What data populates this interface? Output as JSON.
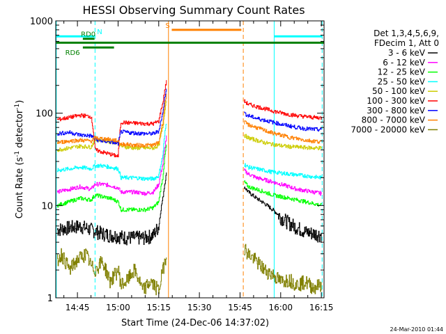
{
  "chart_data": {
    "type": "line",
    "title": "HESSI Observing Summary Count Rates",
    "xlabel": "Start Time (24-Dec-06 14:37:02)",
    "ylabel": "Count Rate (s⁻¹ detector⁻¹)",
    "ylabel_parts": {
      "main": "Count Rate (s",
      "exp1": "-1",
      "mid": " detector",
      "exp2": "-1",
      "end": ")"
    },
    "x_unit": "minutes of day (UT)",
    "x_range": [
      877.0,
      976.0
    ],
    "y_scale": "log",
    "y_range": [
      1,
      1000
    ],
    "x_ticks": [
      {
        "value": 885,
        "label": "14:45"
      },
      {
        "value": 900,
        "label": "15:00"
      },
      {
        "value": 915,
        "label": "15:15"
      },
      {
        "value": 930,
        "label": "15:30"
      },
      {
        "value": 945,
        "label": "15:45"
      },
      {
        "value": 960,
        "label": "16:00"
      },
      {
        "value": 975,
        "label": "16:15"
      }
    ],
    "y_ticks": [
      {
        "value": 1,
        "label": "1"
      },
      {
        "value": 10,
        "label": "10"
      },
      {
        "value": 100,
        "label": "100"
      },
      {
        "value": 1000,
        "label": "1000"
      }
    ],
    "legend": {
      "placement": "right",
      "header": [
        "Det 1,3,4,5,6,9,",
        "FDecim 1, Att 0"
      ]
    },
    "series": [
      {
        "name": "3 - 6 keV",
        "color": "#000000",
        "segments": [
          {
            "x": [
              877.5,
              882,
              886,
              890,
              894,
              897,
              900,
              903,
              906,
              910,
              913,
              915,
              916.5,
              917.8
            ],
            "y": [
              5.5,
              5.8,
              6,
              5.5,
              5,
              4.8,
              4.7,
              4.5,
              4.5,
              4.5,
              4.8,
              6,
              12,
              22
            ]
          },
          {
            "x": [
              946.5,
              948,
              951,
              954,
              957,
              960,
              963,
              966,
              969,
              972,
              975
            ],
            "y": [
              16,
              14,
              12,
              10.5,
              9,
              7.5,
              6.5,
              5.8,
              5.2,
              5,
              4.8
            ]
          }
        ]
      },
      {
        "name": "6 - 12 keV",
        "color": "#ff00ff",
        "segments": [
          {
            "x": [
              877.5,
              882,
              886,
              890,
              891.5,
              894,
              897,
              900,
              901,
              903,
              906,
              910,
              913,
              915,
              916.5,
              917.8
            ],
            "y": [
              14,
              15,
              16,
              15,
              17,
              17,
              16.5,
              15.5,
              14,
              14,
              14,
              13.5,
              14,
              17,
              28,
              55
            ]
          },
          {
            "x": [
              946.5,
              948,
              951,
              954,
              957,
              960,
              963,
              966,
              969,
              972,
              975
            ],
            "y": [
              24,
              22,
              20,
              19,
              18,
              17,
              16,
              15,
              14.5,
              14,
              13.5
            ]
          }
        ]
      },
      {
        "name": "12 - 25 keV",
        "color": "#00ff00",
        "segments": [
          {
            "x": [
              877.5,
              882,
              886,
              890,
              891.5,
              894,
              897,
              900,
              901,
              903,
              906,
              910,
              913,
              915,
              916.5,
              917.8
            ],
            "y": [
              10,
              11,
              12,
              11.5,
              13,
              12.5,
              12,
              11,
              9,
              9,
              9,
              9,
              9.5,
              11,
              20,
              45
            ]
          },
          {
            "x": [
              946.5,
              948,
              951,
              954,
              957,
              960,
              963,
              966,
              969,
              972,
              975
            ],
            "y": [
              18,
              16,
              15,
              14,
              13,
              12.5,
              12,
              11.5,
              11,
              10.5,
              10
            ]
          }
        ]
      },
      {
        "name": "25 - 50 keV",
        "color": "#00ffff",
        "segments": [
          {
            "x": [
              877.5,
              882,
              886,
              890,
              891.5,
              894,
              897,
              900,
              901,
              903,
              906,
              910,
              913,
              915,
              916.5,
              917.8
            ],
            "y": [
              24,
              25,
              26,
              25,
              27,
              27,
              26,
              25,
              20,
              20,
              20,
              19.5,
              19.5,
              21,
              35,
              80
            ]
          },
          {
            "x": [
              946.5,
              948,
              951,
              954,
              957,
              960,
              963,
              966,
              969,
              972,
              975
            ],
            "y": [
              28,
              26,
              25,
              24,
              23,
              22.5,
              22,
              21.5,
              21,
              20.5,
              20
            ]
          }
        ]
      },
      {
        "name": "50 - 100 keV",
        "color": "#cccc00",
        "segments": [
          {
            "x": [
              877.5,
              882,
              886,
              890,
              891.5,
              894,
              897,
              900,
              901,
              903,
              906,
              910,
              913,
              915,
              916.5,
              917.8
            ],
            "y": [
              40,
              42,
              44,
              43,
              52,
              51,
              49,
              48,
              44,
              43,
              42,
              42,
              42,
              45,
              70,
              140
            ]
          },
          {
            "x": [
              946.5,
              948,
              951,
              954,
              957,
              960,
              963,
              966,
              969,
              972,
              975
            ],
            "y": [
              58,
              54,
              51,
              48,
              46,
              44.5,
              43.5,
              43,
              42.5,
              42,
              42
            ]
          }
        ]
      },
      {
        "name": "100 - 300 keV",
        "color": "#ff0000",
        "segments": [
          {
            "x": [
              877.5,
              882,
              886,
              890,
              891.5,
              894,
              897,
              900,
              901,
              903,
              906,
              910,
              913,
              915,
              916.5,
              917.8
            ],
            "y": [
              85,
              90,
              95,
              92,
              40,
              38,
              36,
              34,
              80,
              79,
              78,
              77,
              77,
              82,
              130,
              220
            ]
          },
          {
            "x": [
              946.5,
              948,
              951,
              954,
              957,
              960,
              963,
              966,
              969,
              972,
              975
            ],
            "y": [
              135,
              125,
              118,
              112,
              106,
              101,
              97,
              94,
              92,
              90,
              89
            ]
          }
        ]
      },
      {
        "name": "300 - 800 keV",
        "color": "#0000ff",
        "segments": [
          {
            "x": [
              877.5,
              882,
              886,
              890,
              891.5,
              894,
              897,
              900,
              901,
              903,
              906,
              910,
              913,
              915,
              916.5,
              917.8
            ],
            "y": [
              60,
              62,
              58,
              57,
              52,
              50,
              49,
              47,
              63,
              62,
              61,
              60,
              60,
              64,
              100,
              190
            ]
          },
          {
            "x": [
              946.5,
              948,
              951,
              954,
              957,
              960,
              963,
              966,
              969,
              972,
              975
            ],
            "y": [
              100,
              94,
              88,
              84,
              80,
              76,
              73,
              70,
              68,
              67,
              66
            ]
          }
        ]
      },
      {
        "name": "800 - 7000 keV",
        "color": "#ff8000",
        "segments": [
          {
            "x": [
              877.5,
              882,
              886,
              890,
              891.5,
              894,
              897,
              900,
              901,
              903,
              906,
              910,
              913,
              915,
              916.5,
              917.8
            ],
            "y": [
              48,
              50,
              51,
              50,
              54,
              53,
              52,
              50,
              46,
              46,
              45,
              45,
              45,
              48,
              80,
              160
            ]
          },
          {
            "x": [
              946.5,
              948,
              951,
              954,
              957,
              960,
              963,
              966,
              969,
              972,
              975
            ],
            "y": [
              80,
              75,
              70,
              65,
              61,
              58,
              55,
              53,
              51,
              50,
              49
            ]
          }
        ]
      },
      {
        "name": "7000 - 20000 keV",
        "color": "#808000",
        "segments": [
          {
            "x": [
              877.5,
              879,
              882,
              885,
              888,
              890,
              891.5,
              894,
              897,
              900,
              901,
              903,
              906,
              909,
              912,
              915,
              916.5,
              917.8
            ],
            "y": [
              2.5,
              3,
              2,
              2.6,
              3,
              2.2,
              2,
              2.5,
              1.5,
              2,
              1.4,
              1.5,
              2,
              1.2,
              1.5,
              1.2,
              2,
              3
            ]
          },
          {
            "x": [
              946.5,
              948,
              951,
              954,
              957,
              960,
              963,
              966,
              969,
              972,
              975
            ],
            "y": [
              3.5,
              3,
              2.5,
              2,
              1.8,
              1.5,
              1.6,
              1.4,
              1.5,
              1.3,
              1.4
            ]
          }
        ]
      }
    ],
    "markers": [
      {
        "type": "vline",
        "x": 877.2,
        "color": "#00ffff",
        "style": "solid"
      },
      {
        "type": "vline",
        "x": 891.5,
        "color": "#00ffff",
        "style": "dashed"
      },
      {
        "type": "vline",
        "x": 918.6,
        "color": "#ff8000",
        "style": "solid"
      },
      {
        "type": "vline",
        "x": 946.2,
        "color": "#ff8000",
        "style": "dashed"
      },
      {
        "type": "vline",
        "x": 957.6,
        "color": "#00ffff",
        "style": "solid"
      },
      {
        "type": "vline",
        "x": 975.3,
        "color": "#00ffff",
        "style": "dashed"
      }
    ],
    "bars": [
      {
        "label": "",
        "color": "#00ffff",
        "x": [
          877.2,
          891.3
        ],
        "y": 680
      },
      {
        "label": "N",
        "color": "#00ffff",
        "x": [
          891.3,
          891.3
        ],
        "y": 680,
        "label_x": 893.2
      },
      {
        "label": "",
        "color": "#00ffff",
        "x": [
          957.6,
          975.3
        ],
        "y": 680
      },
      {
        "label": "S",
        "color": "#ff8000",
        "x": [
          919.8,
          945.5
        ],
        "y": 800,
        "label_x": 918.3
      },
      {
        "label": "RD0",
        "color": "#008000",
        "x": [
          887.0,
          891.3
        ],
        "y": 640,
        "label_x": 889.0
      },
      {
        "label": "",
        "color": "#008000",
        "x": [
          877.2,
          976.0
        ],
        "y": 580
      },
      {
        "label": "RD6",
        "color": "#008000",
        "x": [
          887.0,
          898.5
        ],
        "y": 515,
        "label_x": 883.2
      }
    ]
  },
  "footer": {
    "timestamp": "24-Mar-2010 01:44"
  }
}
